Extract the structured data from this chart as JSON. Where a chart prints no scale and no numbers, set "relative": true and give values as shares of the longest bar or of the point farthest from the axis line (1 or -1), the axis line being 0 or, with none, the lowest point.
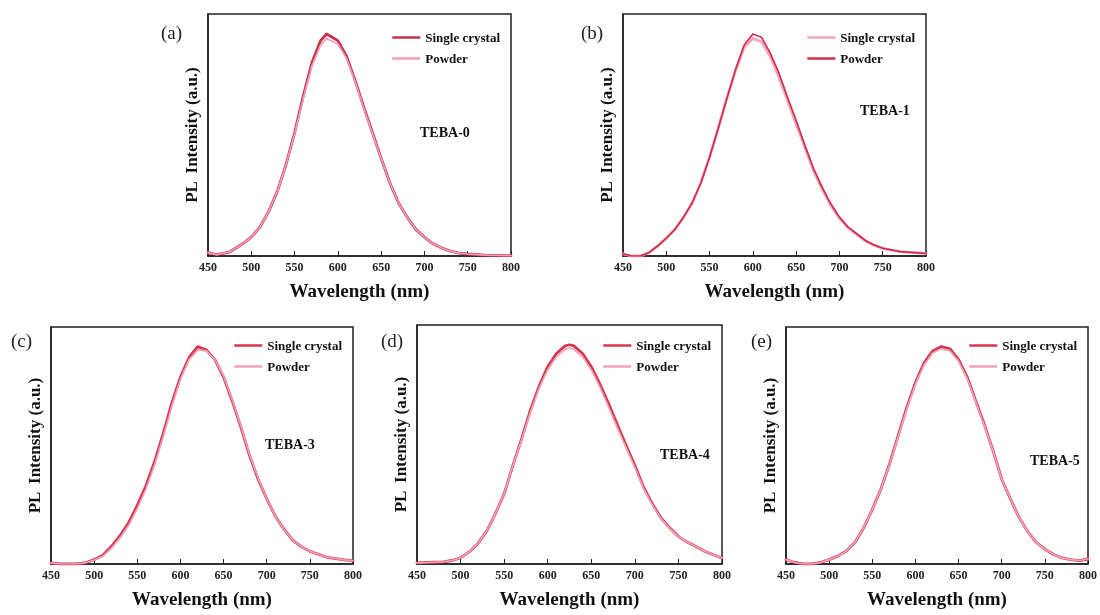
{
  "chart_data": [
    {
      "type": "line",
      "title": "(a)",
      "xlabel": "Wavelength (nm)",
      "ylabel": "PL  Intensity (a.u.)",
      "annotations": [
        "TEBA-0"
      ],
      "relative": true,
      "legend": "top right",
      "grid": false,
      "marker": "none",
      "xlim": [
        450,
        800
      ],
      "xticks": [
        450,
        500,
        550,
        600,
        650,
        700,
        750,
        800
      ],
      "x": [
        450,
        460,
        475,
        490,
        500,
        510,
        520,
        530,
        540,
        550,
        560,
        570,
        580,
        587,
        600,
        610,
        620,
        630,
        640,
        650,
        660,
        670,
        680,
        690,
        700,
        710,
        720,
        730,
        740,
        750,
        770,
        800
      ],
      "series": [
        {
          "name": "Single crystal",
          "color": "#c8304e",
          "values": [
            0.015,
            0.006,
            0.018,
            0.055,
            0.085,
            0.13,
            0.2,
            0.29,
            0.41,
            0.555,
            0.72,
            0.87,
            0.97,
            1,
            0.97,
            0.9,
            0.79,
            0.67,
            0.555,
            0.44,
            0.33,
            0.24,
            0.175,
            0.12,
            0.085,
            0.055,
            0.036,
            0.022,
            0.013,
            0.009,
            0.004,
            0.002
          ]
        },
        {
          "name": "Powder",
          "color": "#ef9fb6",
          "values": [
            0.015,
            0.006,
            0.018,
            0.055,
            0.085,
            0.13,
            0.2,
            0.29,
            0.41,
            0.55,
            0.71,
            0.855,
            0.95,
            0.98,
            0.955,
            0.89,
            0.785,
            0.665,
            0.55,
            0.44,
            0.33,
            0.24,
            0.175,
            0.12,
            0.085,
            0.055,
            0.036,
            0.022,
            0.013,
            0.009,
            0.004,
            0.002
          ]
        }
      ]
    },
    {
      "type": "line",
      "title": "(b)",
      "xlabel": "Wavelength (nm)",
      "ylabel": "PL  Intensity (a.u.)",
      "annotations": [
        "TEBA-1"
      ],
      "relative": true,
      "legend": "top right",
      "grid": false,
      "marker": "none",
      "xlim": [
        450,
        800
      ],
      "xticks": [
        450,
        500,
        550,
        600,
        650,
        700,
        750,
        800
      ],
      "x": [
        450,
        460,
        470,
        480,
        490,
        500,
        510,
        520,
        530,
        540,
        550,
        560,
        570,
        580,
        590,
        600,
        610,
        620,
        630,
        640,
        650,
        660,
        670,
        680,
        690,
        700,
        710,
        720,
        730,
        740,
        750,
        770,
        800
      ],
      "series": [
        {
          "name": "Single crystal",
          "color": "#f0a6bc",
          "values": [
            0.01,
            0,
            0,
            0.015,
            0.045,
            0.08,
            0.12,
            0.175,
            0.24,
            0.33,
            0.445,
            0.575,
            0.71,
            0.835,
            0.94,
            0.98,
            0.965,
            0.9,
            0.805,
            0.7,
            0.595,
            0.49,
            0.385,
            0.3,
            0.228,
            0.17,
            0.127,
            0.097,
            0.068,
            0.049,
            0.034,
            0.02,
            0.012
          ]
        },
        {
          "name": "Powder",
          "color": "#d02f4b",
          "values": [
            0.01,
            0,
            0,
            0.015,
            0.045,
            0.08,
            0.12,
            0.175,
            0.24,
            0.33,
            0.445,
            0.575,
            0.71,
            0.84,
            0.95,
            1,
            0.985,
            0.915,
            0.825,
            0.715,
            0.61,
            0.5,
            0.395,
            0.31,
            0.235,
            0.175,
            0.13,
            0.1,
            0.07,
            0.05,
            0.035,
            0.02,
            0.012
          ]
        }
      ]
    },
    {
      "type": "line",
      "title": "(c)",
      "xlabel": "Wavelength (nm)",
      "ylabel": "PL  Intensity (a.u.)",
      "annotations": [
        "TEBA-3"
      ],
      "relative": true,
      "legend": "top right",
      "grid": false,
      "marker": "none",
      "xlim": [
        450,
        800
      ],
      "xticks": [
        450,
        500,
        550,
        600,
        650,
        700,
        750,
        800
      ],
      "x": [
        450,
        460,
        480,
        490,
        500,
        510,
        520,
        530,
        540,
        550,
        560,
        570,
        580,
        590,
        600,
        610,
        620,
        630,
        640,
        650,
        660,
        670,
        680,
        690,
        700,
        710,
        720,
        730,
        740,
        750,
        770,
        790,
        800
      ],
      "series": [
        {
          "name": "Single crystal",
          "color": "#d8354f",
          "values": [
            0.005,
            0,
            0,
            0.006,
            0.02,
            0.04,
            0.08,
            0.13,
            0.19,
            0.27,
            0.36,
            0.47,
            0.6,
            0.74,
            0.86,
            0.95,
            1,
            0.985,
            0.94,
            0.86,
            0.75,
            0.63,
            0.5,
            0.39,
            0.3,
            0.22,
            0.16,
            0.11,
            0.08,
            0.058,
            0.031,
            0.019,
            0.016
          ]
        },
        {
          "name": "Powder",
          "color": "#eea0b6",
          "values": [
            0.005,
            0,
            0,
            0.006,
            0.018,
            0.036,
            0.072,
            0.12,
            0.178,
            0.255,
            0.345,
            0.455,
            0.585,
            0.725,
            0.85,
            0.94,
            0.985,
            0.98,
            0.94,
            0.865,
            0.755,
            0.635,
            0.505,
            0.395,
            0.3,
            0.22,
            0.16,
            0.11,
            0.08,
            0.058,
            0.031,
            0.019,
            0.016
          ]
        }
      ]
    },
    {
      "type": "line",
      "title": "(d)",
      "xlabel": "Wavelength (nm)",
      "ylabel": "PL  Intensity (a.u.)",
      "annotations": [
        "TEBA-4"
      ],
      "relative": true,
      "legend": "top right",
      "grid": false,
      "marker": "none",
      "xlim": [
        450,
        800
      ],
      "xticks": [
        450,
        500,
        550,
        600,
        650,
        700,
        750,
        800
      ],
      "x": [
        450,
        470,
        480,
        490,
        500,
        510,
        520,
        530,
        540,
        550,
        560,
        570,
        580,
        590,
        600,
        610,
        620,
        625,
        630,
        640,
        650,
        660,
        670,
        680,
        690,
        700,
        710,
        720,
        730,
        740,
        750,
        760,
        770,
        780,
        790,
        800
      ],
      "series": [
        {
          "name": "Single crystal",
          "color": "#d8364f",
          "values": [
            0.005,
            0.008,
            0.01,
            0.016,
            0.028,
            0.055,
            0.094,
            0.15,
            0.23,
            0.32,
            0.45,
            0.57,
            0.7,
            0.81,
            0.9,
            0.96,
            0.995,
            1,
            0.995,
            0.96,
            0.9,
            0.82,
            0.73,
            0.635,
            0.54,
            0.45,
            0.35,
            0.275,
            0.21,
            0.165,
            0.125,
            0.1,
            0.08,
            0.058,
            0.042,
            0.028
          ]
        },
        {
          "name": "Powder",
          "color": "#eea4b9",
          "values": [
            0.005,
            0.008,
            0.01,
            0.016,
            0.028,
            0.055,
            0.094,
            0.15,
            0.23,
            0.32,
            0.45,
            0.565,
            0.69,
            0.8,
            0.885,
            0.945,
            0.978,
            0.985,
            0.978,
            0.945,
            0.885,
            0.805,
            0.715,
            0.62,
            0.53,
            0.44,
            0.345,
            0.27,
            0.207,
            0.163,
            0.124,
            0.1,
            0.08,
            0.058,
            0.042,
            0.028
          ]
        }
      ]
    },
    {
      "type": "line",
      "title": "(e)",
      "xlabel": "Wavelength (nm)",
      "ylabel": "PL  Intensity (a.u.)",
      "annotations": [
        "TEBA-5"
      ],
      "relative": true,
      "legend": "top right",
      "grid": false,
      "marker": "none",
      "xlim": [
        450,
        800
      ],
      "xticks": [
        450,
        500,
        550,
        600,
        650,
        700,
        750,
        800
      ],
      "x": [
        450,
        460,
        470,
        480,
        490,
        500,
        510,
        520,
        530,
        540,
        550,
        560,
        570,
        580,
        590,
        600,
        610,
        620,
        630,
        640,
        650,
        660,
        670,
        680,
        690,
        700,
        710,
        720,
        730,
        740,
        750,
        760,
        770,
        780,
        790,
        800
      ],
      "series": [
        {
          "name": "Single crystal",
          "color": "#d8364f",
          "values": [
            0.02,
            0.007,
            0,
            0,
            0.007,
            0.02,
            0.036,
            0.06,
            0.1,
            0.166,
            0.25,
            0.345,
            0.46,
            0.59,
            0.72,
            0.834,
            0.924,
            0.98,
            1,
            0.99,
            0.94,
            0.86,
            0.75,
            0.64,
            0.52,
            0.39,
            0.3,
            0.215,
            0.15,
            0.1,
            0.068,
            0.044,
            0.028,
            0.02,
            0.016,
            0.023
          ]
        },
        {
          "name": "Powder",
          "color": "#eea4b9",
          "values": [
            0.02,
            0.007,
            0,
            0,
            0.007,
            0.02,
            0.036,
            0.06,
            0.1,
            0.166,
            0.25,
            0.345,
            0.458,
            0.585,
            0.713,
            0.826,
            0.915,
            0.97,
            0.99,
            0.98,
            0.932,
            0.853,
            0.745,
            0.636,
            0.518,
            0.39,
            0.3,
            0.215,
            0.15,
            0.1,
            0.068,
            0.044,
            0.028,
            0.02,
            0.016,
            0.023
          ]
        }
      ]
    }
  ]
}
